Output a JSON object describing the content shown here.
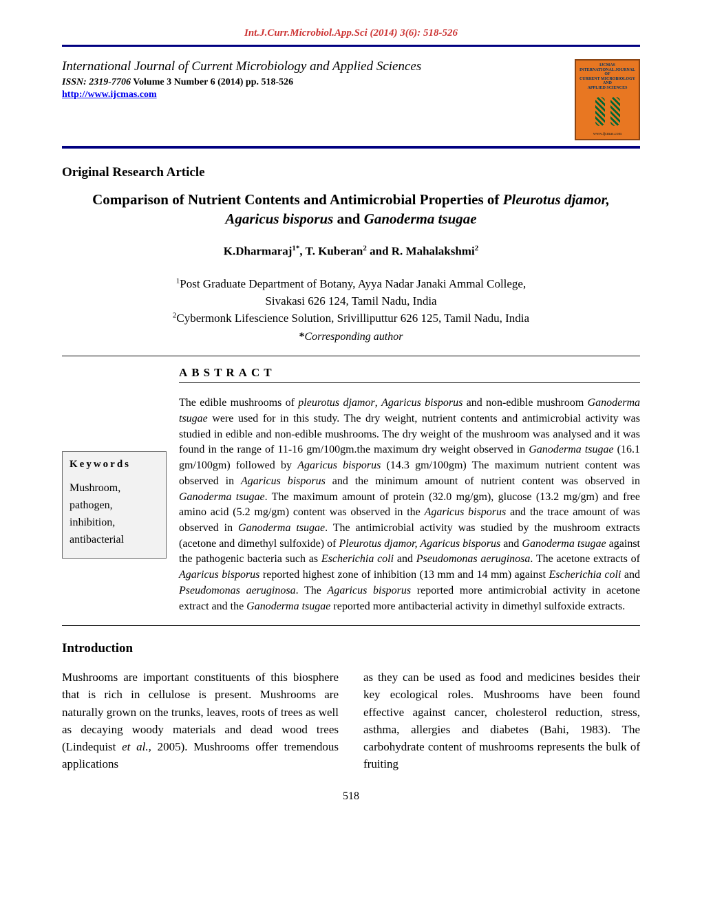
{
  "colors": {
    "header_text": "#cc3333",
    "rule": "#000080",
    "link": "#0000ee",
    "cover_bg": "#e87722",
    "cover_border": "#8b4513",
    "keywords_bg": "#f2f2f2",
    "keywords_border": "#666666",
    "body_text": "#000000",
    "page_bg": "#ffffff"
  },
  "typography": {
    "body_family": "Times New Roman",
    "body_size_pt": 12,
    "title_size_pt": 16,
    "heading_size_pt": 14
  },
  "header": {
    "running": "Int.J.Curr.Microbiol.App.Sci (2014) 3(6): 518-526"
  },
  "masthead": {
    "journal_title": "International Journal of Current Microbiology and Applied Sciences",
    "issn_label": "ISSN: 2319-7706",
    "issue_info": " Volume 3 Number 6 (2014) pp. 518-526",
    "site_url": "http://www.ijcmas.com",
    "cover": {
      "top_line1": "IJCMAS",
      "top_line2": "INTERNATIONAL JOURNAL OF",
      "top_line3": "CURRENT MICROBIOLOGY AND",
      "top_line4": "APPLIED SCIENCES",
      "bottom": "www.ijcmas.com"
    }
  },
  "article": {
    "section_label": "Original Research Article",
    "title_plain_prefix": "Comparison of Nutrient Contents and Antimicrobial Properties of ",
    "title_species_1": "Pleurotus djamor, Agaricus bisporus",
    "title_mid": " and ",
    "title_species_2": "Ganoderma tsugae",
    "authors_html": "K.Dharmaraj",
    "author_sup1": "1*",
    "author_sep1": ", T. Kuberan",
    "author_sup2": "2",
    "author_sep2": " and R. Mahalakshmi",
    "author_sup3": "2",
    "aff1_sup": "1",
    "aff1_line1": "Post Graduate Department of Botany, Ayya Nadar Janaki Ammal College,",
    "aff1_line2": "Sivakasi 626 124, Tamil Nadu, India",
    "aff2_sup": "2",
    "aff2": "Cybermonk Lifescience Solution, Srivilliputtur 626 125, Tamil Nadu, India",
    "corresponding_ast": "*",
    "corresponding": "Corresponding author"
  },
  "abstract": {
    "heading": "ABSTRACT",
    "keywords_heading": "Keywords",
    "keywords": "Mushroom, pathogen, inhibition, antibacterial",
    "p1a": "The edible mushrooms of ",
    "sp1": "pleurotus djamor",
    "p1b": ", ",
    "sp2": "Agaricus bisporus",
    "p1c": " and non-edible mushroom ",
    "sp3": "Ganoderma tsugae",
    "p1d": " were used for in this study.  The dry weight, nutrient contents and antimicrobial activity was studied in edible and non-edible mushrooms. The dry weight of the mushroom was  analysed and it was found in the range of 11-16 gm/100gm.the maximum dry weight observed in ",
    "sp4": "Ganoderma tsugae",
    "p1e": " (16.1 gm/100gm) followed by ",
    "sp5": "Agaricus bisporus",
    "p1f": " (14.3 gm/100gm) The maximum nutrient content was observed in ",
    "sp6": "Agaricus bisporus",
    "p1g": " and the minimum amount of nutrient content was observed in ",
    "sp7": "Ganoderma tsugae",
    "p1h": ".  The maximum amount of protein (32.0 mg/gm), glucose (13.2 mg/gm) and free amino acid (5.2 mg/gm) content was observed in the ",
    "sp8": "Agaricus bisporus",
    "p1i": " and the trace amount of was observed in ",
    "sp9": "Ganoderma tsugae",
    "p1j": ". The antimicrobial activity was studied by the mushroom extracts (acetone and dimethyl sulfoxide) of ",
    "sp10": "Pleurotus djamor, Agaricus bisporus",
    "p1k": " and ",
    "sp11": "Ganoderma tsugae",
    "p1l": " against the pathogenic bacteria such as ",
    "sp12": "Escherichia coli",
    "p1m": " and ",
    "sp13": "Pseudomonas aeruginosa",
    "p1n": ". The acetone extracts of ",
    "sp14": "Agaricus bisporus",
    "p1o": " reported highest zone of inhibition (13 mm and 14 mm) against ",
    "sp15": "Escherichia coli",
    "p1p": " and ",
    "sp16": "Pseudomonas aeruginosa",
    "p1q": ". The ",
    "sp17": "Agaricus bisporus",
    "p1r": " reported more antimicrobial activity in acetone extract and the ",
    "sp18": "Ganoderma tsugae",
    "p1s": " reported more antibacterial activity in dimethyl sulfoxide extracts."
  },
  "intro": {
    "heading": "Introduction",
    "col1a": "Mushrooms are important constituents of this biosphere that is rich in cellulose is present.  Mushrooms are naturally grown on the trunks, leaves, roots of trees as well as decaying woody materials and dead wood trees (Lindequist ",
    "col1_it": "et al.,",
    "col1b": " 2005). Mushrooms offer tremendous applications",
    "col2": "as they can be used as food and medicines besides their key ecological roles. Mushrooms have been found effective against cancer, cholesterol reduction, stress, asthma, allergies and diabetes (Bahi, 1983). The carbohydrate content of mushrooms represents the bulk of fruiting"
  },
  "page_number": "518"
}
